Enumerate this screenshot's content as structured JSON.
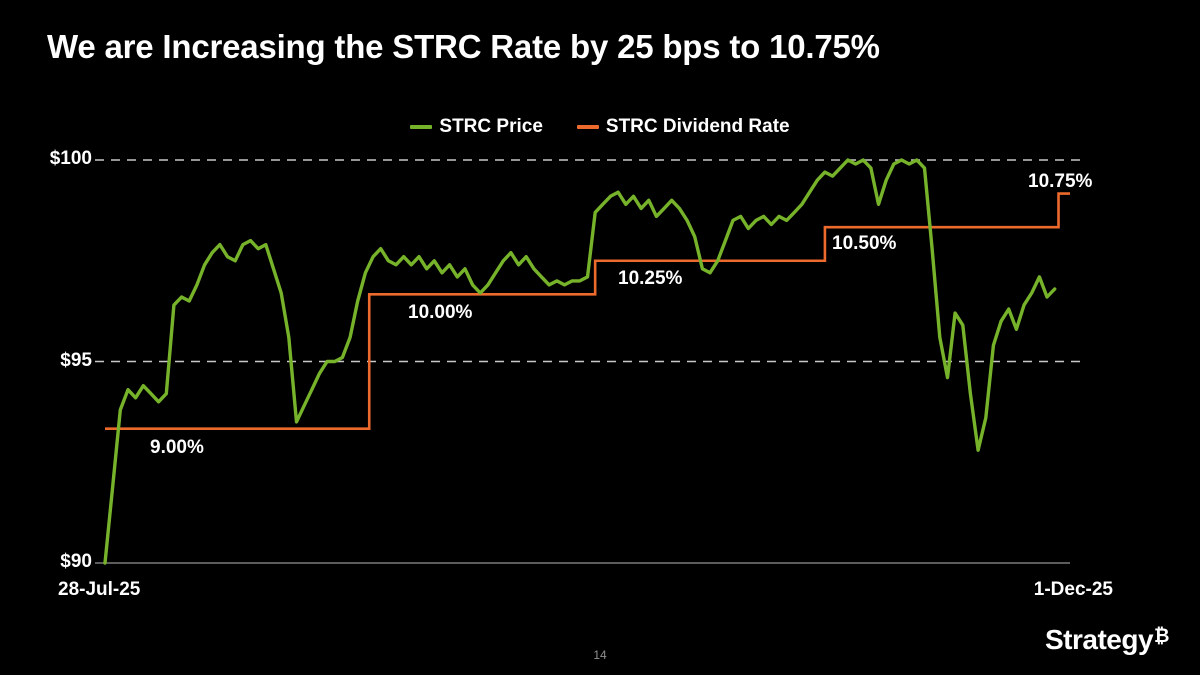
{
  "slide": {
    "title": "We are Increasing the STRC Rate by 25 bps to 10.75%",
    "page_number": "14",
    "logo_text": "Strategy",
    "logo_symbol": "₿"
  },
  "chart_data": {
    "type": "line",
    "legend": [
      {
        "label": "STRC Price",
        "color": "#76b32b"
      },
      {
        "label": "STRC Dividend Rate",
        "color": "#ed6a2d"
      }
    ],
    "x_axis": {
      "min_day": 0,
      "max_day": 126,
      "ticks": [
        {
          "label": "28-Jul-25",
          "day": 0
        },
        {
          "label": "1-Dec-25",
          "day": 126
        }
      ]
    },
    "y_axis": {
      "min": 90,
      "max": 100,
      "ticks": [
        {
          "label": "$100",
          "value": 100
        },
        {
          "label": "$95",
          "value": 95
        },
        {
          "label": "$90",
          "value": 90
        }
      ],
      "dashed_gridlines": [
        100,
        95
      ],
      "gridline_color": "#c8c8c8",
      "axis_line_color": "#7a7a7a"
    },
    "secondary_y_axis": {
      "min": 8,
      "max": 11,
      "unit": "%"
    },
    "series": [
      {
        "name": "STRC Price",
        "color": "#76b32b",
        "type": "line",
        "points": [
          [
            0,
            90.0
          ],
          [
            1,
            91.9
          ],
          [
            2,
            93.8
          ],
          [
            3,
            94.3
          ],
          [
            4,
            94.1
          ],
          [
            5,
            94.4
          ],
          [
            6,
            94.2
          ],
          [
            7,
            94.0
          ],
          [
            8,
            94.2
          ],
          [
            9,
            96.4
          ],
          [
            10,
            96.6
          ],
          [
            11,
            96.5
          ],
          [
            12,
            96.9
          ],
          [
            13,
            97.4
          ],
          [
            14,
            97.7
          ],
          [
            15,
            97.9
          ],
          [
            16,
            97.6
          ],
          [
            17,
            97.5
          ],
          [
            18,
            97.9
          ],
          [
            19,
            98.0
          ],
          [
            20,
            97.8
          ],
          [
            21,
            97.9
          ],
          [
            22,
            97.3
          ],
          [
            23,
            96.7
          ],
          [
            24,
            95.6
          ],
          [
            25,
            93.5
          ],
          [
            26,
            93.9
          ],
          [
            27,
            94.3
          ],
          [
            28,
            94.7
          ],
          [
            29,
            95.0
          ],
          [
            30,
            95.0
          ],
          [
            31,
            95.1
          ],
          [
            32,
            95.6
          ],
          [
            33,
            96.5
          ],
          [
            34,
            97.2
          ],
          [
            35,
            97.6
          ],
          [
            36,
            97.8
          ],
          [
            37,
            97.5
          ],
          [
            38,
            97.4
          ],
          [
            39,
            97.6
          ],
          [
            40,
            97.4
          ],
          [
            41,
            97.6
          ],
          [
            42,
            97.3
          ],
          [
            43,
            97.5
          ],
          [
            44,
            97.2
          ],
          [
            45,
            97.4
          ],
          [
            46,
            97.1
          ],
          [
            47,
            97.3
          ],
          [
            48,
            96.9
          ],
          [
            49,
            96.7
          ],
          [
            50,
            96.9
          ],
          [
            51,
            97.2
          ],
          [
            52,
            97.5
          ],
          [
            53,
            97.7
          ],
          [
            54,
            97.4
          ],
          [
            55,
            97.6
          ],
          [
            56,
            97.3
          ],
          [
            57,
            97.1
          ],
          [
            58,
            96.9
          ],
          [
            59,
            97.0
          ],
          [
            60,
            96.9
          ],
          [
            61,
            97.0
          ],
          [
            62,
            97.0
          ],
          [
            63,
            97.1
          ],
          [
            64,
            98.7
          ],
          [
            65,
            98.9
          ],
          [
            66,
            99.1
          ],
          [
            67,
            99.2
          ],
          [
            68,
            98.9
          ],
          [
            69,
            99.1
          ],
          [
            70,
            98.8
          ],
          [
            71,
            99.0
          ],
          [
            72,
            98.6
          ],
          [
            73,
            98.8
          ],
          [
            74,
            99.0
          ],
          [
            75,
            98.8
          ],
          [
            76,
            98.5
          ],
          [
            77,
            98.1
          ],
          [
            78,
            97.3
          ],
          [
            79,
            97.2
          ],
          [
            80,
            97.5
          ],
          [
            81,
            98.0
          ],
          [
            82,
            98.5
          ],
          [
            83,
            98.6
          ],
          [
            84,
            98.3
          ],
          [
            85,
            98.5
          ],
          [
            86,
            98.6
          ],
          [
            87,
            98.4
          ],
          [
            88,
            98.6
          ],
          [
            89,
            98.5
          ],
          [
            90,
            98.7
          ],
          [
            91,
            98.9
          ],
          [
            92,
            99.2
          ],
          [
            93,
            99.5
          ],
          [
            94,
            99.7
          ],
          [
            95,
            99.6
          ],
          [
            96,
            99.8
          ],
          [
            97,
            100.0
          ],
          [
            98,
            99.9
          ],
          [
            99,
            100.0
          ],
          [
            100,
            99.8
          ],
          [
            101,
            98.9
          ],
          [
            102,
            99.5
          ],
          [
            103,
            99.9
          ],
          [
            104,
            100.0
          ],
          [
            105,
            99.9
          ],
          [
            106,
            100.0
          ],
          [
            107,
            99.8
          ],
          [
            108,
            97.8
          ],
          [
            109,
            95.6
          ],
          [
            110,
            94.6
          ],
          [
            111,
            96.2
          ],
          [
            112,
            95.9
          ],
          [
            113,
            94.2
          ],
          [
            114,
            92.8
          ],
          [
            115,
            93.6
          ],
          [
            116,
            95.4
          ],
          [
            117,
            96.0
          ],
          [
            118,
            96.3
          ],
          [
            119,
            95.8
          ],
          [
            120,
            96.4
          ],
          [
            121,
            96.7
          ],
          [
            122,
            97.1
          ],
          [
            123,
            96.6
          ],
          [
            124,
            96.8
          ]
        ]
      },
      {
        "name": "STRC Dividend Rate",
        "color": "#ed6a2d",
        "type": "step",
        "segments": [
          {
            "label": "9.00%",
            "value": 9.0,
            "start_day": 0,
            "end_day": 34.5,
            "label_side": "below"
          },
          {
            "label": "10.00%",
            "value": 10.0,
            "start_day": 34.5,
            "end_day": 64,
            "label_side": "below"
          },
          {
            "label": "10.25%",
            "value": 10.25,
            "start_day": 64,
            "end_day": 94,
            "label_side": "below"
          },
          {
            "label": "10.50%",
            "value": 10.5,
            "start_day": 94,
            "end_day": 124.5,
            "label_side": "below"
          },
          {
            "label": "10.75%",
            "value": 10.75,
            "start_day": 124.5,
            "end_day": 126,
            "label_side": "above"
          }
        ]
      }
    ]
  }
}
